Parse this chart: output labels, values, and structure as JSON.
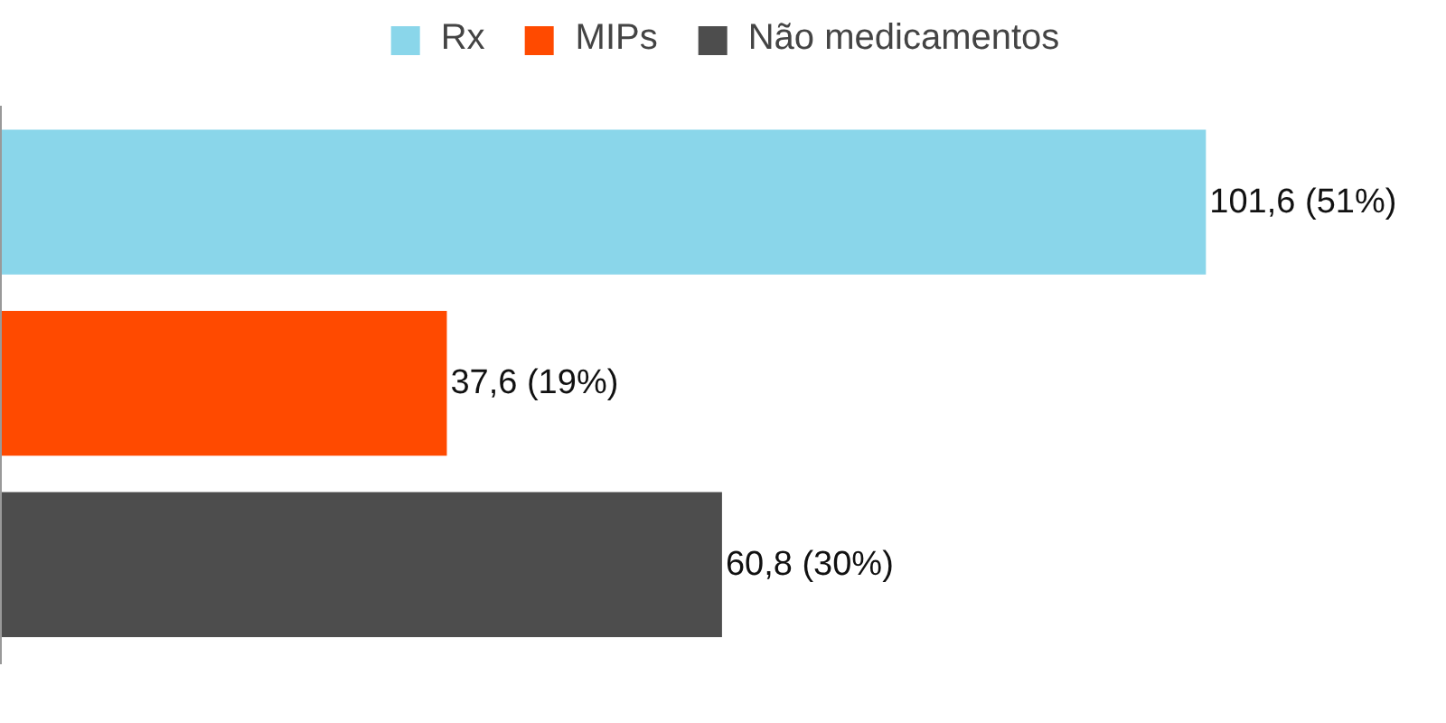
{
  "chart_data": {
    "type": "bar",
    "orientation": "horizontal",
    "stacked": true,
    "categories": [
      null,
      null,
      null
    ],
    "series": [
      {
        "name": "Rx",
        "color": "#8ad6ea",
        "values": [
          101.6,
          null,
          null
        ],
        "value_labels": [
          "101,6 (51%)",
          null,
          null
        ]
      },
      {
        "name": "MIPs",
        "color": "#ff4a00",
        "values": [
          null,
          37.6,
          null
        ],
        "value_labels": [
          null,
          "37,6 (19%)",
          null
        ]
      },
      {
        "name": "Não medicamentos",
        "color": "#4d4d4d",
        "values": [
          null,
          null,
          60.8
        ],
        "value_labels": [
          null,
          null,
          "60,8 (30%)"
        ]
      }
    ],
    "tick_labels": false,
    "legend": "top"
  }
}
